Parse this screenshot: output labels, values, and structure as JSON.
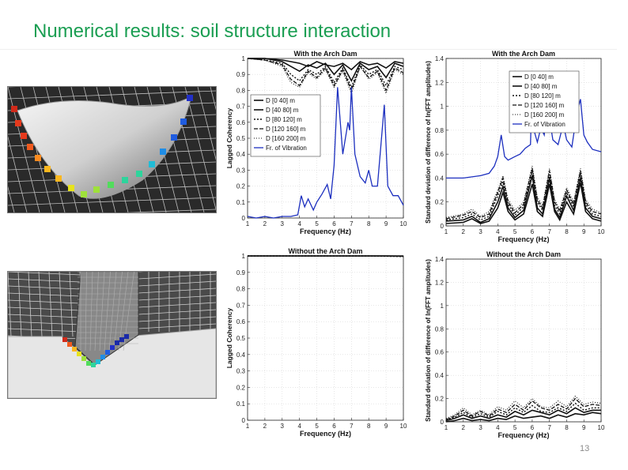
{
  "slide": {
    "title": "Numerical results: soil structure interaction",
    "page_number": "13"
  },
  "colors": {
    "title": "#1a9e52",
    "blue": "#1c2fbf",
    "black": "#111111"
  },
  "chart_data": [
    {
      "type": "line",
      "title": "With the Arch Dam",
      "xlabel": "Frequency (Hz)",
      "ylabel": "Lagged Coherency",
      "xlim": [
        1,
        10
      ],
      "ylim": [
        0,
        1
      ],
      "xticks": [
        "1",
        "2",
        "3",
        "4",
        "5",
        "6",
        "7",
        "8",
        "9",
        "10"
      ],
      "yticks": [
        "0",
        "0.1",
        "0.2",
        "0.3",
        "0.4",
        "0.5",
        "0.6",
        "0.7",
        "0.8",
        "0.9",
        "1"
      ],
      "grid": true,
      "legend": "left",
      "series": [
        {
          "name": "D [0 40] m",
          "x": [
            1,
            2,
            3,
            3.5,
            4,
            4.5,
            5,
            5.5,
            6,
            6.5,
            7,
            7.5,
            8,
            8.5,
            9,
            9.5,
            10
          ],
          "y": [
            1,
            1,
            0.99,
            0.98,
            0.97,
            0.95,
            0.98,
            0.96,
            0.95,
            0.97,
            0.93,
            0.98,
            0.96,
            0.97,
            0.94,
            0.98,
            0.97
          ]
        },
        {
          "name": "D [40 80] m",
          "x": [
            1,
            2,
            3,
            3.5,
            4,
            4.5,
            5,
            5.5,
            6,
            6.5,
            7,
            7.5,
            8,
            8.5,
            9,
            9.5,
            10
          ],
          "y": [
            1,
            1,
            0.98,
            0.95,
            0.92,
            0.96,
            0.94,
            0.97,
            0.9,
            0.96,
            0.86,
            0.97,
            0.93,
            0.95,
            0.88,
            0.97,
            0.95
          ]
        },
        {
          "name": "D [80 120] m",
          "x": [
            1,
            2,
            3,
            3.5,
            4,
            4.5,
            5,
            5.5,
            6,
            6.5,
            7,
            7.5,
            8,
            8.5,
            9,
            9.5,
            10
          ],
          "y": [
            1,
            0.99,
            0.97,
            0.9,
            0.86,
            0.93,
            0.9,
            0.95,
            0.85,
            0.94,
            0.82,
            0.96,
            0.9,
            0.93,
            0.83,
            0.95,
            0.93
          ]
        },
        {
          "name": "D [120 160] m",
          "x": [
            1,
            2,
            3,
            3.5,
            4,
            4.5,
            5,
            5.5,
            6,
            6.5,
            7,
            7.5,
            8,
            8.5,
            9,
            9.5,
            10
          ],
          "y": [
            1,
            0.99,
            0.96,
            0.87,
            0.83,
            0.92,
            0.88,
            0.94,
            0.83,
            0.93,
            0.8,
            0.95,
            0.88,
            0.92,
            0.8,
            0.94,
            0.91
          ]
        },
        {
          "name": "D [160 200] m",
          "x": [
            1,
            2,
            3,
            3.5,
            4,
            4.5,
            5,
            5.5,
            6,
            6.5,
            7,
            7.5,
            8,
            8.5,
            9,
            9.5,
            10
          ],
          "y": [
            1,
            0.99,
            0.95,
            0.85,
            0.82,
            0.91,
            0.87,
            0.93,
            0.82,
            0.92,
            0.78,
            0.95,
            0.87,
            0.91,
            0.78,
            0.93,
            0.9
          ]
        },
        {
          "name": "Fr. of Vibration",
          "x": [
            1,
            1.5,
            2,
            2.5,
            3,
            3.5,
            3.9,
            4.1,
            4.3,
            4.5,
            4.8,
            5,
            5.3,
            5.6,
            5.8,
            6,
            6.2,
            6.5,
            6.8,
            6.9,
            7,
            7.2,
            7.5,
            7.8,
            8,
            8.2,
            8.5,
            8.7,
            8.9,
            9.1,
            9.4,
            9.7,
            10
          ],
          "y": [
            0.01,
            0.0,
            0.01,
            0.0,
            0.01,
            0.01,
            0.02,
            0.14,
            0.07,
            0.12,
            0.05,
            0.1,
            0.15,
            0.21,
            0.12,
            0.33,
            0.82,
            0.4,
            0.6,
            0.55,
            0.82,
            0.4,
            0.26,
            0.22,
            0.3,
            0.2,
            0.2,
            0.45,
            0.71,
            0.2,
            0.14,
            0.14,
            0.08
          ]
        }
      ]
    },
    {
      "type": "line",
      "title": "With the Arch Dam",
      "xlabel": "Frequency (Hz)",
      "ylabel": "Standard deviation of difference of ln(FFT amplitudes)",
      "xlim": [
        1,
        10
      ],
      "ylim": [
        0,
        1.4
      ],
      "xticks": [
        "1",
        "2",
        "3",
        "4",
        "5",
        "6",
        "7",
        "8",
        "9",
        "10"
      ],
      "yticks": [
        "0",
        "0.2",
        "0.4",
        "0.6",
        "0.8",
        "1",
        "1.2",
        "1.4"
      ],
      "grid": true,
      "legend": "top-right",
      "series": [
        {
          "name": "D [0 40] m",
          "x": [
            1,
            2,
            2.5,
            3,
            3.5,
            4,
            4.3,
            4.6,
            5,
            5.5,
            6,
            6.3,
            6.6,
            7,
            7.3,
            7.6,
            8,
            8.4,
            8.8,
            9.1,
            9.5,
            10
          ],
          "y": [
            0.02,
            0.03,
            0.06,
            0.02,
            0.04,
            0.15,
            0.28,
            0.12,
            0.05,
            0.1,
            0.35,
            0.12,
            0.08,
            0.35,
            0.12,
            0.05,
            0.2,
            0.1,
            0.36,
            0.12,
            0.06,
            0.04
          ]
        },
        {
          "name": "D [40 80] m",
          "x": [
            1,
            2,
            2.5,
            3,
            3.5,
            4,
            4.3,
            4.6,
            5,
            5.5,
            6,
            6.3,
            6.6,
            7,
            7.3,
            7.6,
            8,
            8.4,
            8.8,
            9.1,
            9.5,
            10
          ],
          "y": [
            0.04,
            0.05,
            0.08,
            0.03,
            0.06,
            0.2,
            0.33,
            0.15,
            0.07,
            0.13,
            0.42,
            0.15,
            0.1,
            0.4,
            0.14,
            0.07,
            0.25,
            0.13,
            0.4,
            0.15,
            0.08,
            0.06
          ]
        },
        {
          "name": "D [80 120] m",
          "x": [
            1,
            2,
            2.5,
            3,
            3.5,
            4,
            4.3,
            4.6,
            5,
            5.5,
            6,
            6.3,
            6.6,
            7,
            7.3,
            7.6,
            8,
            8.4,
            8.8,
            9.1,
            9.5,
            10
          ],
          "y": [
            0.05,
            0.07,
            0.1,
            0.05,
            0.08,
            0.25,
            0.37,
            0.18,
            0.09,
            0.16,
            0.45,
            0.2,
            0.13,
            0.43,
            0.17,
            0.1,
            0.28,
            0.16,
            0.43,
            0.18,
            0.1,
            0.08
          ]
        },
        {
          "name": "D [120 160] m",
          "x": [
            1,
            2,
            2.5,
            3,
            3.5,
            4,
            4.3,
            4.6,
            5,
            5.5,
            6,
            6.3,
            6.6,
            7,
            7.3,
            7.6,
            8,
            8.4,
            8.8,
            9.1,
            9.5,
            10
          ],
          "y": [
            0.06,
            0.09,
            0.12,
            0.07,
            0.1,
            0.28,
            0.4,
            0.2,
            0.11,
            0.18,
            0.48,
            0.22,
            0.15,
            0.46,
            0.2,
            0.12,
            0.3,
            0.18,
            0.46,
            0.2,
            0.12,
            0.1
          ]
        },
        {
          "name": "D [160 200] m",
          "x": [
            1,
            2,
            2.5,
            3,
            3.5,
            4,
            4.3,
            4.6,
            5,
            5.5,
            6,
            6.3,
            6.6,
            7,
            7.3,
            7.6,
            8,
            8.4,
            8.8,
            9.1,
            9.5,
            10
          ],
          "y": [
            0.07,
            0.1,
            0.14,
            0.08,
            0.12,
            0.3,
            0.42,
            0.22,
            0.13,
            0.2,
            0.5,
            0.24,
            0.17,
            0.48,
            0.22,
            0.14,
            0.32,
            0.2,
            0.48,
            0.22,
            0.14,
            0.11
          ]
        },
        {
          "name": "Fr. of Vibration",
          "x": [
            1,
            1.5,
            2,
            2.5,
            3,
            3.5,
            3.8,
            4,
            4.2,
            4.4,
            4.6,
            5,
            5.3,
            5.6,
            5.9,
            6,
            6.1,
            6.3,
            6.5,
            6.7,
            6.9,
            7,
            7.2,
            7.5,
            7.8,
            8,
            8.3,
            8.6,
            8.8,
            9,
            9.2,
            9.5,
            10
          ],
          "y": [
            0.4,
            0.4,
            0.4,
            0.41,
            0.42,
            0.44,
            0.5,
            0.58,
            0.76,
            0.58,
            0.55,
            0.58,
            0.6,
            0.65,
            0.68,
            1.2,
            0.8,
            0.7,
            0.82,
            0.76,
            1.1,
            0.9,
            0.72,
            0.68,
            0.85,
            0.72,
            0.66,
            0.95,
            1.06,
            0.76,
            0.7,
            0.64,
            0.62
          ]
        }
      ]
    },
    {
      "type": "line",
      "title": "Without the Arch Dam",
      "xlabel": "Frequency (Hz)",
      "ylabel": "Lagged Coherency",
      "xlim": [
        1,
        10
      ],
      "ylim": [
        0,
        1
      ],
      "xticks": [
        "1",
        "2",
        "3",
        "4",
        "5",
        "6",
        "7",
        "8",
        "9",
        "10"
      ],
      "yticks": [
        "0",
        "0.1",
        "0.2",
        "0.3",
        "0.4",
        "0.5",
        "0.6",
        "0.7",
        "0.8",
        "0.9",
        "1"
      ],
      "grid": true,
      "series": [
        {
          "x": [
            1,
            2,
            3,
            4,
            5,
            6,
            7,
            8,
            9,
            10
          ],
          "y": [
            1,
            1,
            1,
            1,
            1,
            1,
            1,
            1,
            1,
            1
          ]
        },
        {
          "x": [
            1,
            2,
            3,
            4,
            5,
            6,
            7,
            8,
            9,
            10
          ],
          "y": [
            1,
            1,
            1,
            1,
            1,
            1,
            1,
            1,
            1,
            0.998
          ]
        },
        {
          "x": [
            1,
            2,
            3,
            4,
            5,
            6,
            7,
            8,
            9,
            10
          ],
          "y": [
            1,
            1,
            1,
            1,
            1,
            1,
            1,
            1,
            0.998,
            0.996
          ]
        }
      ]
    },
    {
      "type": "line",
      "title": "Without the Arch Dam",
      "xlabel": "Frequency (Hz)",
      "ylabel": "Standard deviation of difference of ln(FFT amplitudes)",
      "xlim": [
        1,
        10
      ],
      "ylim": [
        0,
        1.4
      ],
      "xticks": [
        "1",
        "2",
        "3",
        "4",
        "5",
        "6",
        "7",
        "8",
        "9",
        "10"
      ],
      "yticks": [
        "0",
        "0.2",
        "0.4",
        "0.6",
        "0.8",
        "1",
        "1.2",
        "1.4"
      ],
      "grid": true,
      "series": [
        {
          "x": [
            1,
            1.5,
            2,
            2.5,
            3,
            3.5,
            4,
            4.5,
            5,
            5.5,
            6,
            6.5,
            7,
            7.5,
            8,
            8.5,
            9,
            9.5,
            10
          ],
          "y": [
            0.0,
            0.01,
            0.03,
            0.01,
            0.02,
            0.01,
            0.03,
            0.02,
            0.05,
            0.03,
            0.04,
            0.05,
            0.03,
            0.06,
            0.04,
            0.07,
            0.06,
            0.08,
            0.07
          ]
        },
        {
          "x": [
            1,
            1.5,
            2,
            2.5,
            3,
            3.5,
            4,
            4.5,
            5,
            5.5,
            6,
            6.5,
            7,
            7.5,
            8,
            8.5,
            9,
            9.5,
            10
          ],
          "y": [
            0.01,
            0.03,
            0.06,
            0.03,
            0.05,
            0.03,
            0.06,
            0.04,
            0.09,
            0.06,
            0.1,
            0.08,
            0.06,
            0.1,
            0.07,
            0.12,
            0.08,
            0.1,
            0.1
          ]
        },
        {
          "x": [
            1,
            1.5,
            2,
            2.5,
            3,
            3.5,
            4,
            4.5,
            5,
            5.5,
            6,
            6.5,
            7,
            7.5,
            8,
            8.5,
            9,
            9.5,
            10
          ],
          "y": [
            0.02,
            0.04,
            0.08,
            0.04,
            0.07,
            0.04,
            0.09,
            0.06,
            0.12,
            0.08,
            0.14,
            0.09,
            0.08,
            0.12,
            0.09,
            0.16,
            0.1,
            0.12,
            0.12
          ]
        },
        {
          "x": [
            1,
            1.5,
            2,
            2.5,
            3,
            3.5,
            4,
            4.5,
            5,
            5.5,
            6,
            6.5,
            7,
            7.5,
            8,
            8.5,
            9,
            9.5,
            10
          ],
          "y": [
            0.02,
            0.05,
            0.1,
            0.05,
            0.09,
            0.05,
            0.11,
            0.08,
            0.15,
            0.1,
            0.18,
            0.12,
            0.1,
            0.15,
            0.11,
            0.2,
            0.13,
            0.15,
            0.14
          ]
        },
        {
          "x": [
            1,
            1.5,
            2,
            2.5,
            3,
            3.5,
            4,
            4.5,
            5,
            5.5,
            6,
            6.5,
            7,
            7.5,
            8,
            8.5,
            9,
            9.5,
            10
          ],
          "y": [
            0.03,
            0.06,
            0.12,
            0.06,
            0.1,
            0.06,
            0.13,
            0.1,
            0.18,
            0.12,
            0.2,
            0.13,
            0.12,
            0.18,
            0.13,
            0.22,
            0.15,
            0.17,
            0.16
          ]
        }
      ]
    }
  ]
}
